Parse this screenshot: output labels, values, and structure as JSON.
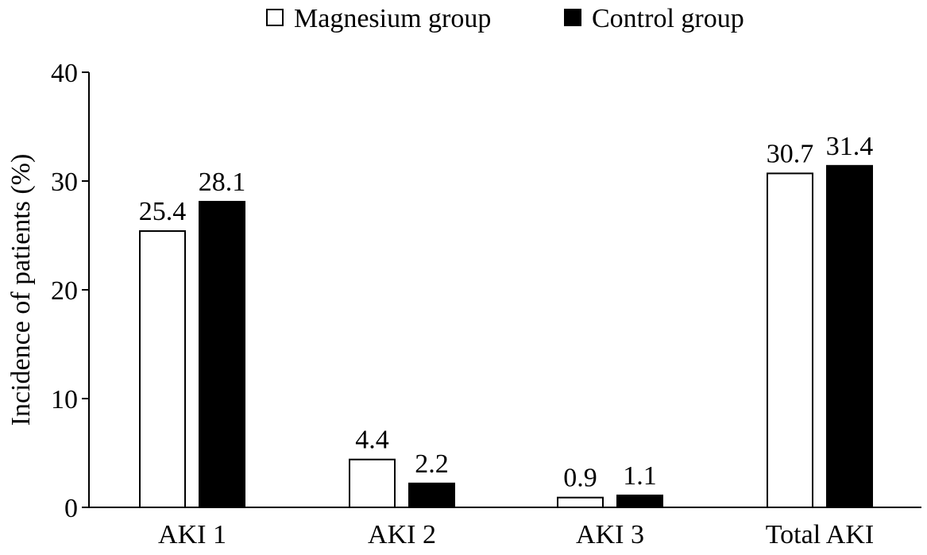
{
  "chart_data": {
    "type": "bar",
    "title": "",
    "xlabel": "",
    "ylabel": "Incidence of patients (%)",
    "ylim": [
      0,
      40
    ],
    "yticks": [
      0,
      10,
      20,
      30,
      40
    ],
    "grid": false,
    "legend_position": "top",
    "categories": [
      "AKI 1",
      "AKI 2",
      "AKI 3",
      "Total AKI"
    ],
    "series": [
      {
        "name": "Magnesium group",
        "values": [
          25.4,
          4.4,
          0.9,
          30.7
        ],
        "labels": [
          "25.4",
          "4.4",
          "0.9",
          "30.7"
        ],
        "fill": "#ffffff",
        "stroke": "#000000"
      },
      {
        "name": "Control group",
        "values": [
          28.1,
          2.2,
          1.1,
          31.4
        ],
        "labels": [
          "28.1",
          "2.2",
          "1.1",
          "31.4"
        ],
        "fill": "#000000",
        "stroke": "#000000"
      }
    ]
  }
}
